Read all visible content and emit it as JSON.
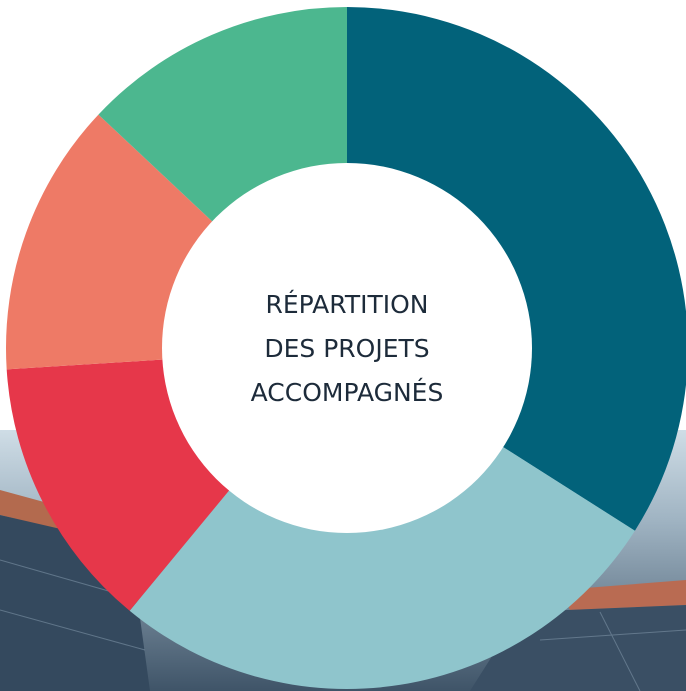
{
  "chart_data": {
    "type": "donut",
    "title_lines": [
      "RÉPARTITION",
      "DES PROJETS",
      "ACCOMPAGNÉS"
    ],
    "values": [
      34,
      27,
      13,
      13,
      13
    ],
    "colors": [
      "#02627a",
      "#8fc5cc",
      "#e6374a",
      "#ee7a66",
      "#4cb78f"
    ]
  }
}
